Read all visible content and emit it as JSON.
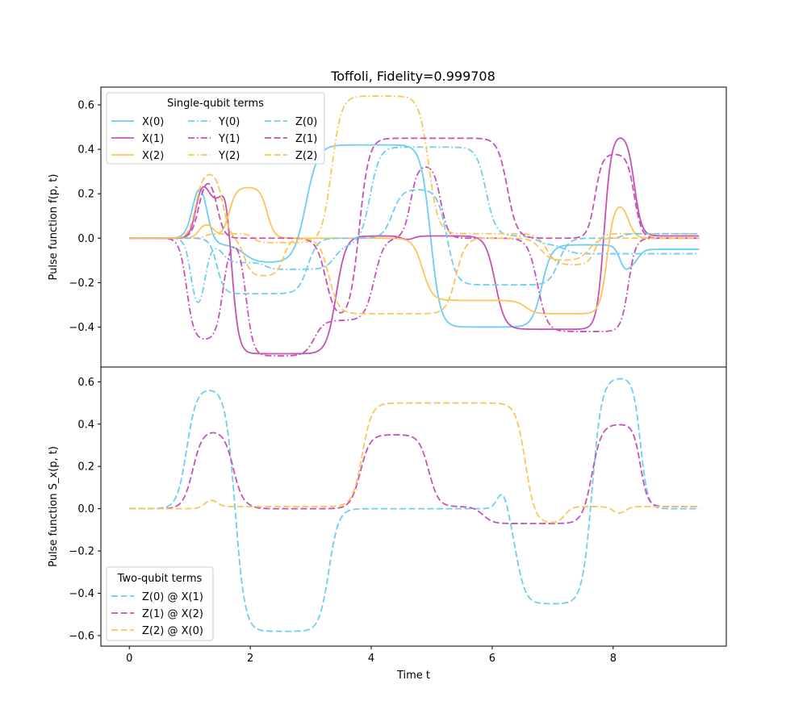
{
  "colors": {
    "blue": "#6ECDF5",
    "magenta": "#C652B5",
    "orange": "#FDC459"
  },
  "chart_data": [
    {
      "type": "line",
      "title": "Toffoli, Fidelity=0.999708",
      "xlabel": "",
      "ylabel": "Pulse function f(p, t)",
      "xlim": [
        -0.47,
        9.87
      ],
      "ylim": [
        -0.58,
        0.68
      ],
      "yticks": [
        {
          "v": 0.6,
          "label": "0.6"
        },
        {
          "v": 0.4,
          "label": "0.4"
        },
        {
          "v": 0.2,
          "label": "0.2"
        },
        {
          "v": 0.0,
          "label": "0.0"
        },
        {
          "v": -0.2,
          "label": "−0.2"
        },
        {
          "v": -0.4,
          "label": "−0.4"
        }
      ],
      "legend": {
        "title": "Single-qubit terms",
        "placement": "top-left",
        "columns": 3
      },
      "series": [
        {
          "name": "X(0)",
          "color": "blue",
          "dash": "solid",
          "base": 0,
          "steps": [
            [
              1.05,
              0.3,
              0.06
            ],
            [
              1.28,
              -0.33,
              0.06
            ],
            [
              1.9,
              -0.08,
              0.1
            ],
            [
              2.92,
              0.53,
              0.1
            ],
            [
              4.98,
              -0.82,
              0.08
            ],
            [
              6.82,
              0.37,
              0.08
            ],
            [
              8.12,
              -0.15,
              0.05
            ],
            [
              8.25,
              0.06,
              0.05
            ],
            [
              8.42,
              0.07,
              0.05
            ]
          ]
        },
        {
          "name": "X(1)",
          "color": "magenta",
          "dash": "solid",
          "base": 0,
          "steps": [
            [
              1.1,
              0.27,
              0.05
            ],
            [
              1.3,
              -0.1,
              0.05
            ],
            [
              1.55,
              0.22,
              0.05
            ],
            [
              1.68,
              -0.91,
              0.06
            ],
            [
              3.42,
              0.53,
              0.08
            ],
            [
              4.5,
              -0.02,
              0.05
            ],
            [
              4.7,
              0.02,
              0.05
            ],
            [
              6.05,
              -0.42,
              0.08
            ],
            [
              7.85,
              0.88,
              0.06
            ],
            [
              8.35,
              -0.46,
              0.06
            ]
          ]
        },
        {
          "name": "X(2)",
          "color": "orange",
          "dash": "solid",
          "base": 0,
          "steps": [
            [
              1.15,
              0.07,
              0.05
            ],
            [
              1.4,
              -0.07,
              0.05
            ],
            [
              1.65,
              0.23,
              0.06
            ],
            [
              2.28,
              -0.23,
              0.06
            ],
            [
              4.85,
              -0.28,
              0.08
            ],
            [
              6.55,
              -0.06,
              0.08
            ],
            [
              7.9,
              0.51,
              0.06
            ],
            [
              8.25,
              -0.17,
              0.06
            ]
          ]
        },
        {
          "name": "Y(0)",
          "color": "blue",
          "dash": "dashdot",
          "base": 0,
          "steps": [
            [
              1.02,
              -0.35,
              0.05
            ],
            [
              1.25,
              0.32,
              0.05
            ],
            [
              1.55,
              -0.08,
              0.06
            ],
            [
              2.25,
              -0.03,
              0.06
            ],
            [
              3.4,
              0.11,
              0.08
            ],
            [
              3.98,
              0.44,
              0.08
            ],
            [
              5.9,
              -0.4,
              0.08
            ],
            [
              6.75,
              -0.04,
              0.08
            ],
            [
              7.2,
              -0.04,
              0.08
            ]
          ]
        },
        {
          "name": "Y(1)",
          "color": "magenta",
          "dash": "dashdot",
          "base": 0,
          "steps": [
            [
              0.95,
              -0.46,
              0.06
            ],
            [
              1.55,
              0.46,
              0.06
            ],
            [
              1.93,
              -0.53,
              0.06
            ],
            [
              3.06,
              0.16,
              0.08
            ],
            [
              4.05,
              0.37,
              0.08
            ],
            [
              4.65,
              0.33,
              0.06
            ],
            [
              5.15,
              -0.33,
              0.06
            ],
            [
              6.75,
              -0.42,
              0.08
            ],
            [
              8.25,
              0.42,
              0.06
            ]
          ]
        },
        {
          "name": "Y(2)",
          "color": "orange",
          "dash": "dashdot",
          "base": 0,
          "steps": [
            [
              1.25,
              0.02,
              0.05
            ],
            [
              2.05,
              -0.04,
              0.05
            ],
            [
              3.25,
              0.04,
              0.08
            ],
            [
              3.35,
              0.62,
              0.08
            ],
            [
              4.95,
              -0.62,
              0.08
            ],
            [
              6.9,
              -0.14,
              0.08
            ],
            [
              7.7,
              0.14,
              0.06
            ]
          ]
        },
        {
          "name": "Z(0)",
          "color": "blue",
          "dash": "dashed",
          "base": 0,
          "steps": [
            [
              1.45,
              -0.25,
              0.06
            ],
            [
              2.95,
              0.25,
              0.08
            ],
            [
              4.35,
              0.22,
              0.08
            ],
            [
              5.25,
              -0.43,
              0.08
            ],
            [
              7.1,
              0.21,
              0.08
            ],
            [
              8.15,
              0.02,
              0.05
            ]
          ]
        },
        {
          "name": "Z(1)",
          "color": "magenta",
          "dash": "dashed",
          "base": 0,
          "steps": [
            [
              1.15,
              0.29,
              0.06
            ],
            [
              1.45,
              -0.29,
              0.06
            ],
            [
              3.25,
              -0.37,
              0.08
            ],
            [
              3.8,
              0.82,
              0.08
            ],
            [
              6.25,
              -0.45,
              0.08
            ],
            [
              7.7,
              0.38,
              0.06
            ],
            [
              8.35,
              -0.38,
              0.06
            ]
          ]
        },
        {
          "name": "Z(2)",
          "color": "orange",
          "dash": "dashed",
          "base": 0,
          "steps": [
            [
              1.1,
              0.3,
              0.06
            ],
            [
              1.55,
              -0.3,
              0.06
            ],
            [
              1.9,
              -0.17,
              0.06
            ],
            [
              2.55,
              0.17,
              0.06
            ],
            [
              3.3,
              -0.34,
              0.08
            ],
            [
              5.4,
              0.34,
              0.08
            ],
            [
              6.8,
              -0.1,
              0.08
            ],
            [
              7.6,
              0.1,
              0.08
            ]
          ]
        }
      ]
    },
    {
      "type": "line",
      "title": "",
      "xlabel": "Time t",
      "ylabel": "Pulse function S_x(p, t)",
      "xlim": [
        -0.47,
        9.87
      ],
      "ylim": [
        -0.65,
        0.67
      ],
      "xticks": [
        {
          "v": 0,
          "label": "0"
        },
        {
          "v": 2,
          "label": "2"
        },
        {
          "v": 4,
          "label": "4"
        },
        {
          "v": 6,
          "label": "6"
        },
        {
          "v": 8,
          "label": "8"
        }
      ],
      "yticks": [
        {
          "v": 0.6,
          "label": "0.6"
        },
        {
          "v": 0.4,
          "label": "0.4"
        },
        {
          "v": 0.2,
          "label": "0.2"
        },
        {
          "v": 0.0,
          "label": "0.0"
        },
        {
          "v": -0.2,
          "label": "−0.2"
        },
        {
          "v": -0.4,
          "label": "−0.4"
        },
        {
          "v": -0.6,
          "label": "−0.6"
        }
      ],
      "legend": {
        "title": "Two-qubit terms",
        "placement": "lower-left",
        "columns": 1
      },
      "series": [
        {
          "name": "Z(0) @ X(1)",
          "color": "blue",
          "dash": "dashed",
          "base": 0,
          "steps": [
            [
              0.95,
              0.57,
              0.08
            ],
            [
              1.75,
              -1.15,
              0.08
            ],
            [
              3.3,
              0.58,
              0.08
            ],
            [
              6.1,
              0.14,
              0.05
            ],
            [
              6.25,
              -0.14,
              0.05
            ],
            [
              6.4,
              -0.45,
              0.08
            ],
            [
              7.65,
              1.07,
              0.08
            ],
            [
              8.45,
              -0.62,
              0.06
            ]
          ]
        },
        {
          "name": "Z(1) @ X(2)",
          "color": "magenta",
          "dash": "dashed",
          "base": 0,
          "steps": [
            [
              1.05,
              0.37,
              0.08
            ],
            [
              1.72,
              -0.36,
              0.08
            ],
            [
              2.05,
              -0.01,
              0.06
            ],
            [
              3.82,
              0.35,
              0.08
            ],
            [
              4.95,
              -0.34,
              0.08
            ],
            [
              5.85,
              -0.08,
              0.08
            ],
            [
              7.65,
              0.47,
              0.08
            ],
            [
              8.45,
              -0.39,
              0.06
            ]
          ]
        },
        {
          "name": "Z(2) @ X(0)",
          "color": "orange",
          "dash": "dashed",
          "base": 0,
          "steps": [
            [
              1.25,
              0.05,
              0.05
            ],
            [
              1.45,
              -0.04,
              0.05
            ],
            [
              3.85,
              0.49,
              0.08
            ],
            [
              6.55,
              -0.57,
              0.08
            ],
            [
              7.2,
              0.08,
              0.06
            ],
            [
              8.0,
              -0.04,
              0.05
            ],
            [
              8.2,
              0.04,
              0.05
            ]
          ]
        }
      ]
    }
  ]
}
